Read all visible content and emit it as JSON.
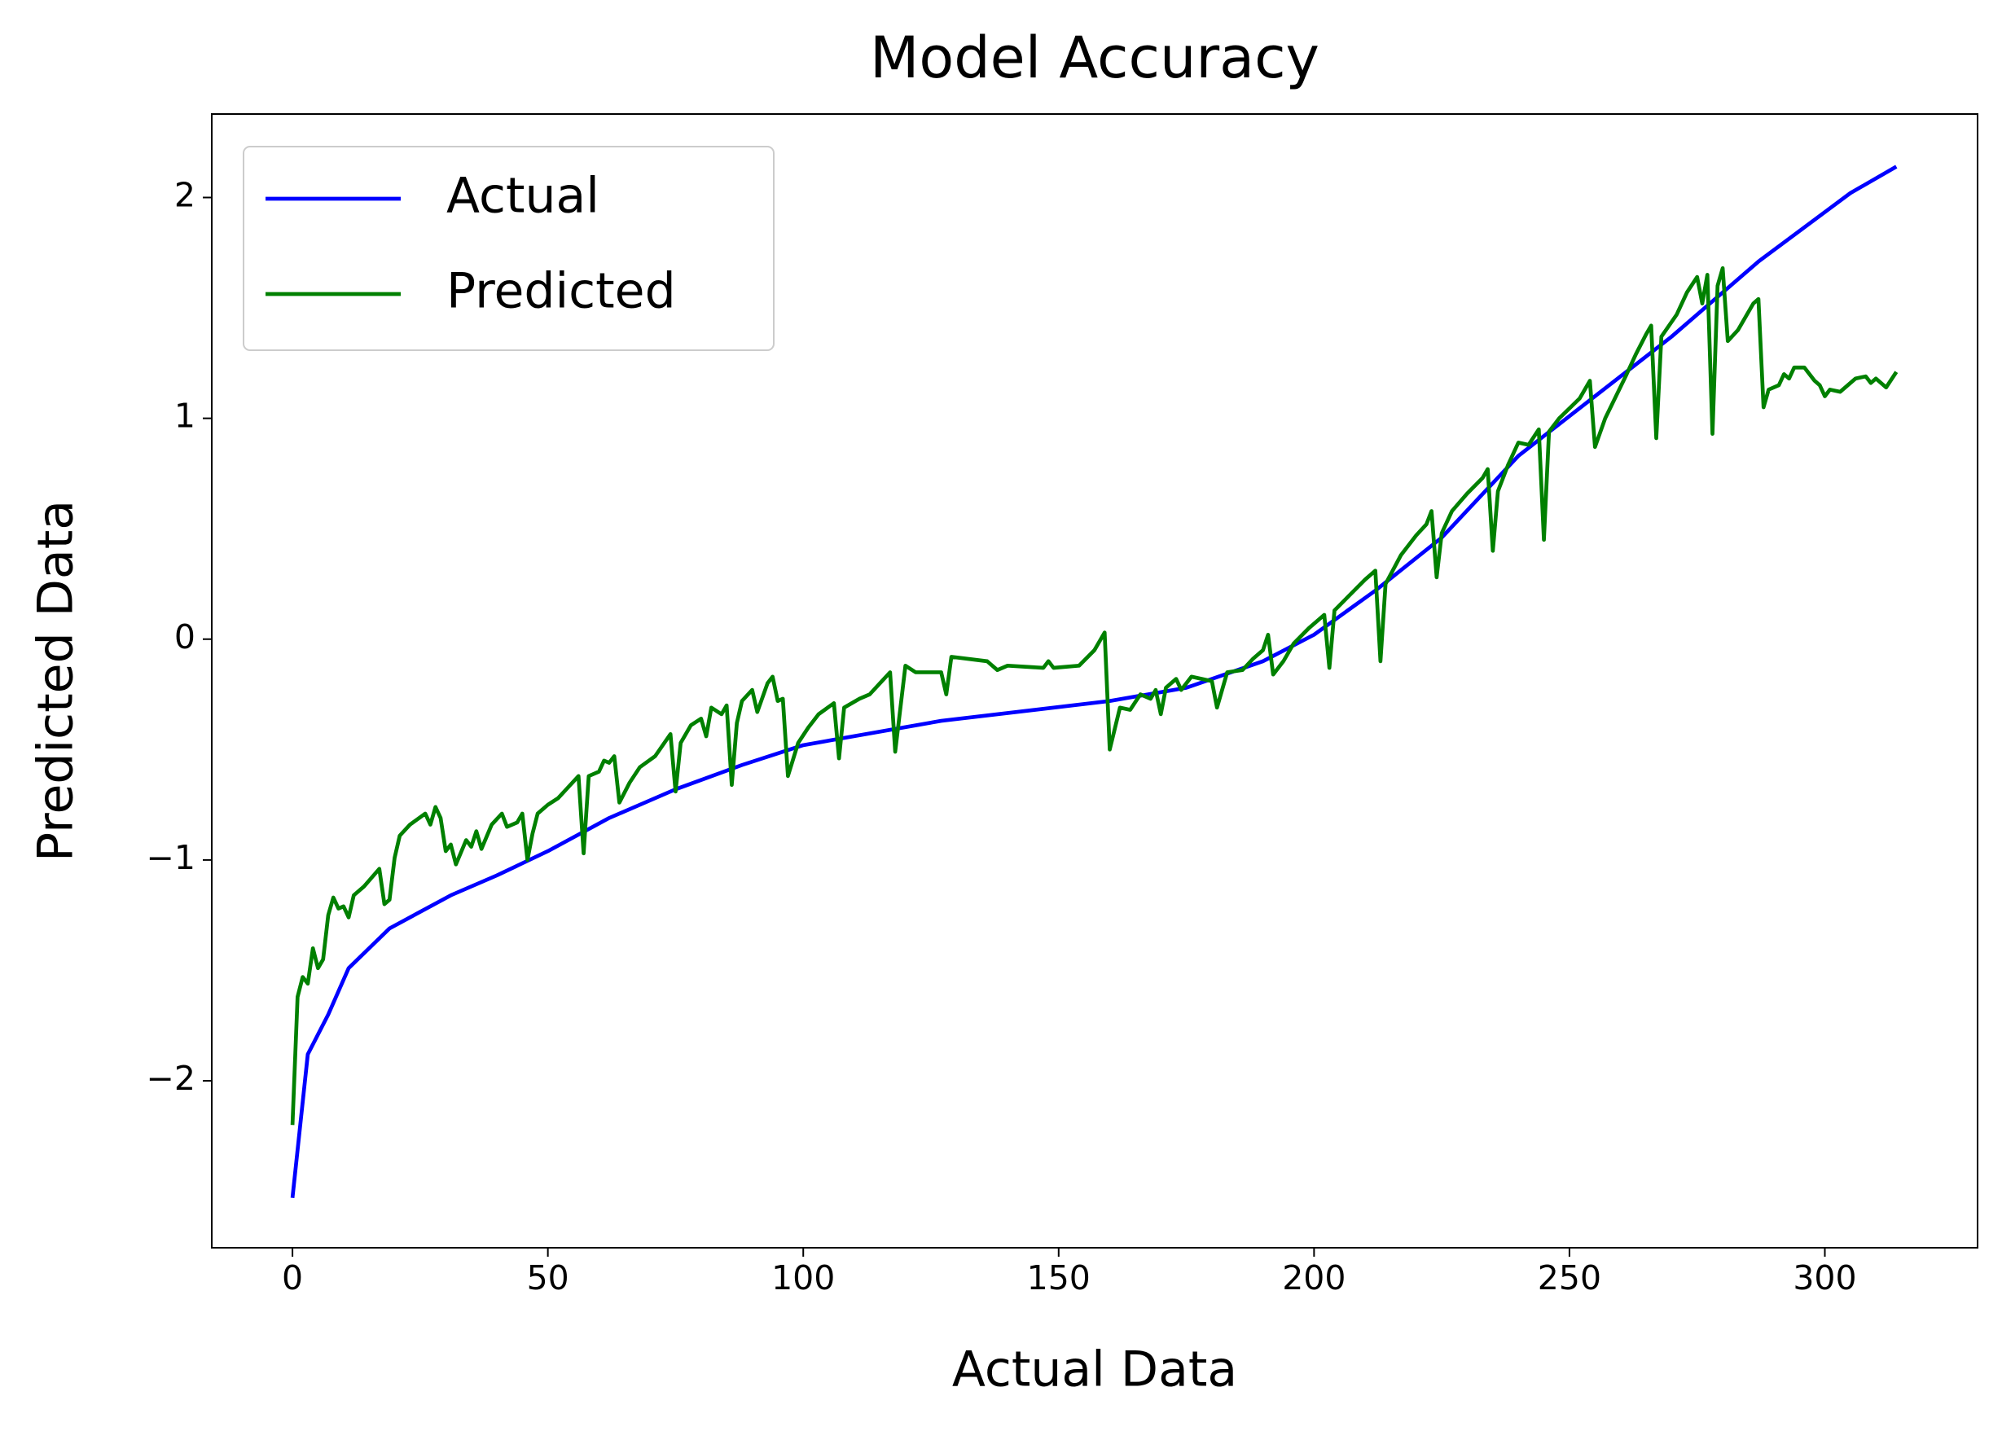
{
  "chart_data": {
    "type": "line",
    "title": "Model Accuracy",
    "x_label": "Actual Data",
    "y_label": "Predicted Data",
    "xlim": [
      -15.8,
      329.9
    ],
    "ylim": [
      -2.756,
      2.378
    ],
    "xticks": [
      0,
      50,
      100,
      150,
      200,
      250,
      300
    ],
    "yticks": [
      {
        "value": -2,
        "label": "−2"
      },
      {
        "value": -1,
        "label": "−1"
      },
      0,
      1,
      2
    ],
    "legend": "upper left",
    "series": [
      {
        "name": "Actual",
        "color": "#0000ff",
        "x": [
          0,
          3,
          7,
          11,
          19,
          31,
          40,
          50,
          62,
          75,
          88,
          100,
          127,
          160,
          175,
          190,
          200,
          212,
          225,
          240,
          255,
          270,
          287,
          305,
          314
        ],
        "values": [
          -2.53,
          -1.88,
          -1.7,
          -1.49,
          -1.31,
          -1.16,
          -1.07,
          -0.96,
          -0.81,
          -0.68,
          -0.57,
          -0.48,
          -0.37,
          -0.28,
          -0.22,
          -0.1,
          0.02,
          0.22,
          0.46,
          0.83,
          1.1,
          1.37,
          1.71,
          2.02,
          2.14
        ]
      },
      {
        "name": "Predicted",
        "color": "#008000",
        "x": [
          0,
          1,
          2,
          3,
          4,
          5,
          6,
          7,
          8,
          9,
          10,
          11,
          12,
          14,
          17,
          18,
          19,
          20,
          21,
          23,
          26,
          27,
          28,
          29,
          30,
          31,
          32,
          34,
          35,
          36,
          37,
          39,
          41,
          42,
          44,
          45,
          46,
          47,
          48,
          50,
          52,
          54,
          56,
          57,
          58,
          60,
          61,
          62,
          63,
          64,
          66,
          68,
          71,
          74,
          75,
          76,
          78,
          80,
          81,
          82,
          84,
          85,
          86,
          87,
          88,
          90,
          91,
          93,
          94,
          95,
          96,
          97,
          99,
          101,
          103,
          106,
          107,
          108,
          111,
          113,
          115,
          117,
          118,
          120,
          122,
          127,
          128,
          129,
          136,
          138,
          140,
          147,
          148,
          149,
          154,
          157,
          159,
          160,
          162,
          164,
          166,
          168,
          169,
          170,
          171,
          173,
          174,
          176,
          180,
          181,
          183,
          186,
          188,
          190,
          191,
          192,
          194,
          196,
          199,
          202,
          203,
          204,
          207,
          210,
          212,
          213,
          214,
          217,
          220,
          222,
          223,
          224,
          225,
          227,
          230,
          233,
          234,
          235,
          236,
          238,
          240,
          242,
          244,
          245,
          246,
          248,
          252,
          254,
          255,
          257,
          261,
          263,
          265,
          266,
          267,
          268,
          271,
          273,
          275,
          276,
          277,
          278,
          279,
          280,
          281,
          283,
          286,
          287,
          288,
          289,
          291,
          292,
          293,
          294,
          296,
          298,
          299,
          300,
          301,
          303,
          306,
          308,
          309,
          310,
          311,
          312,
          314
        ],
        "values": [
          -2.2,
          -1.62,
          -1.53,
          -1.56,
          -1.4,
          -1.49,
          -1.45,
          -1.25,
          -1.17,
          -1.22,
          -1.21,
          -1.26,
          -1.16,
          -1.12,
          -1.04,
          -1.2,
          -1.18,
          -0.99,
          -0.89,
          -0.84,
          -0.79,
          -0.84,
          -0.76,
          -0.81,
          -0.96,
          -0.93,
          -1.02,
          -0.91,
          -0.94,
          -0.87,
          -0.95,
          -0.84,
          -0.79,
          -0.85,
          -0.83,
          -0.79,
          -1.0,
          -0.88,
          -0.79,
          -0.75,
          -0.72,
          -0.67,
          -0.62,
          -0.97,
          -0.62,
          -0.6,
          -0.55,
          -0.56,
          -0.53,
          -0.74,
          -0.65,
          -0.58,
          -0.53,
          -0.43,
          -0.69,
          -0.47,
          -0.39,
          -0.36,
          -0.44,
          -0.31,
          -0.34,
          -0.3,
          -0.66,
          -0.38,
          -0.28,
          -0.23,
          -0.33,
          -0.2,
          -0.17,
          -0.28,
          -0.27,
          -0.62,
          -0.47,
          -0.4,
          -0.34,
          -0.29,
          -0.54,
          -0.31,
          -0.27,
          -0.25,
          -0.2,
          -0.15,
          -0.51,
          -0.12,
          -0.15,
          -0.15,
          -0.25,
          -0.08,
          -0.1,
          -0.14,
          -0.12,
          -0.13,
          -0.1,
          -0.13,
          -0.12,
          -0.05,
          0.03,
          -0.5,
          -0.31,
          -0.32,
          -0.25,
          -0.27,
          -0.23,
          -0.34,
          -0.22,
          -0.18,
          -0.23,
          -0.17,
          -0.19,
          -0.31,
          -0.15,
          -0.14,
          -0.09,
          -0.05,
          0.02,
          -0.16,
          -0.1,
          -0.02,
          0.05,
          0.11,
          -0.13,
          0.13,
          0.2,
          0.27,
          0.31,
          -0.1,
          0.25,
          0.38,
          0.47,
          0.52,
          0.58,
          0.28,
          0.48,
          0.58,
          0.66,
          0.73,
          0.77,
          0.4,
          0.67,
          0.79,
          0.89,
          0.88,
          0.95,
          0.45,
          0.94,
          1.0,
          1.09,
          1.17,
          0.87,
          1.0,
          1.19,
          1.29,
          1.38,
          1.42,
          0.91,
          1.37,
          1.47,
          1.57,
          1.64,
          1.52,
          1.65,
          0.93,
          1.6,
          1.68,
          1.35,
          1.4,
          1.52,
          1.54,
          1.05,
          1.13,
          1.15,
          1.2,
          1.18,
          1.23,
          1.23,
          1.17,
          1.15,
          1.1,
          1.13,
          1.12,
          1.18,
          1.19,
          1.16,
          1.18,
          1.16,
          1.14,
          1.21
        ]
      }
    ]
  }
}
